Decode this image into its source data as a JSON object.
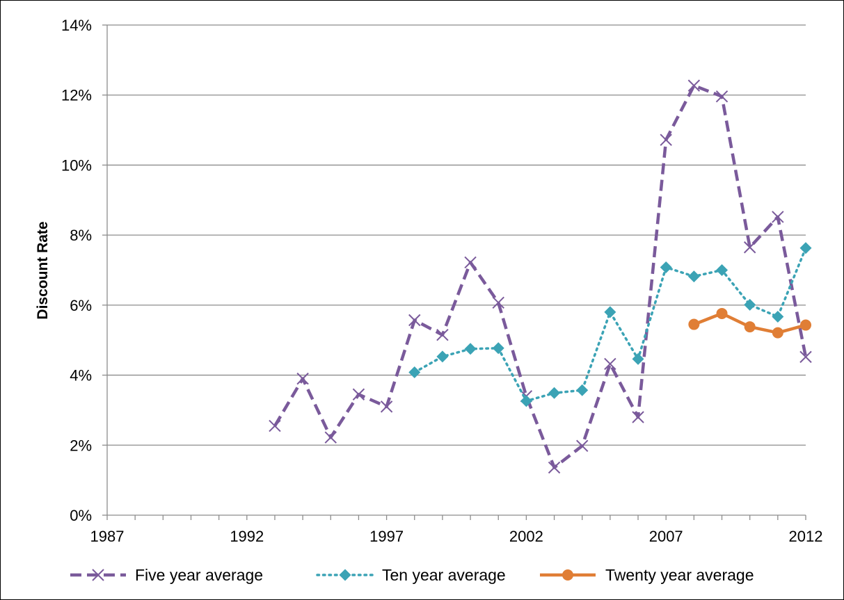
{
  "chart_data": {
    "type": "line",
    "title": "",
    "xlabel": "",
    "ylabel": "Discount Rate",
    "xlim": [
      1987,
      2012
    ],
    "ylim": [
      0,
      0.14
    ],
    "x_ticks": [
      1987,
      1992,
      1997,
      2002,
      2007,
      2012
    ],
    "x_tick_labels": [
      "1987",
      "1992",
      "1997",
      "2002",
      "2007",
      "2012"
    ],
    "y_ticks": [
      0,
      0.02,
      0.04,
      0.06,
      0.08,
      0.1,
      0.12,
      0.14
    ],
    "y_tick_labels": [
      "0%",
      "2%",
      "4%",
      "6%",
      "8%",
      "10%",
      "12%",
      "14%"
    ],
    "grid": "horizontal",
    "legend_position": "bottom",
    "series": [
      {
        "name": "Five year average",
        "color": "#7A5A9B",
        "line_style": "dashed",
        "marker": "x",
        "x": [
          1993,
          1994,
          1995,
          1996,
          1997,
          1998,
          1999,
          2000,
          2001,
          2002,
          2003,
          2004,
          2005,
          2006,
          2007,
          2008,
          2009,
          2010,
          2011,
          2012
        ],
        "values": [
          0.0255,
          0.039,
          0.0222,
          0.0345,
          0.031,
          0.0557,
          0.0515,
          0.0722,
          0.0607,
          0.034,
          0.0136,
          0.0198,
          0.0432,
          0.028,
          0.1072,
          0.1227,
          0.1196,
          0.0765,
          0.0852,
          0.0452
        ]
      },
      {
        "name": "Ten year average",
        "color": "#3BA3B5",
        "line_style": "dotted",
        "marker": "diamond",
        "x": [
          1998,
          1999,
          2000,
          2001,
          2002,
          2003,
          2004,
          2005,
          2006,
          2007,
          2008,
          2009,
          2010,
          2011,
          2012
        ],
        "values": [
          0.0408,
          0.0453,
          0.0475,
          0.0477,
          0.0326,
          0.0349,
          0.0357,
          0.058,
          0.0446,
          0.0708,
          0.0682,
          0.07,
          0.0601,
          0.0567,
          0.0763
        ]
      },
      {
        "name": "Twenty year average",
        "color": "#E07E35",
        "line_style": "solid",
        "marker": "circle",
        "x": [
          2008,
          2009,
          2010,
          2011,
          2012
        ],
        "values": [
          0.0545,
          0.0576,
          0.0538,
          0.0521,
          0.0543
        ]
      }
    ]
  }
}
